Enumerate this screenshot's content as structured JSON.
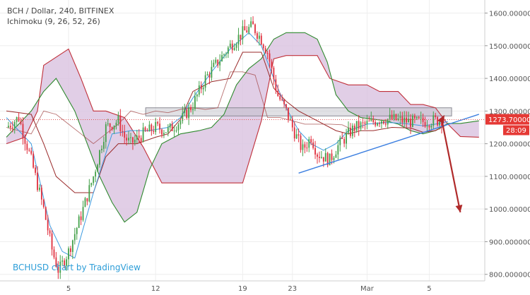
{
  "header": {
    "symbol_line": "BCH / Dollar, 240, BITFINEX",
    "indicator_line": "Ichimoku (9, 26, 52, 26)"
  },
  "watermark": "BCHUSD chart by TradingView",
  "price_label": "1273.70000",
  "countdown_label": "28:09",
  "colors": {
    "up": "#44a04a",
    "down": "#e0303e",
    "cloud": "#d9c2e0",
    "span_a": "#2f8a2f",
    "span_b": "#c0303a",
    "tenkan": "#3c9be0",
    "kijun": "#9a2a2a",
    "trend": "#3c7fe0",
    "arrow": "#b02a2a"
  },
  "chart_data": {
    "type": "candlestick",
    "title": "BCH / Dollar, 240, BITFINEX",
    "ylim": [
      780,
      1640
    ],
    "y_ticks": [
      "800.000000",
      "900.000000",
      "1000.000000",
      "1100.000000",
      "1200.000000",
      "1300.000000",
      "1400.000000",
      "1500.000000",
      "1600.000000"
    ],
    "x_labels": [
      {
        "label": "5",
        "day": 5
      },
      {
        "label": "12",
        "day": 12
      },
      {
        "label": "19",
        "day": 19
      },
      {
        "label": "23",
        "day": 23
      },
      {
        "label": "Mar",
        "day": 29
      },
      {
        "label": "5",
        "day": 34
      }
    ],
    "last_price": 1273.7,
    "close_path": [
      [
        0,
        1250
      ],
      [
        1,
        1280
      ],
      [
        2,
        1150
      ],
      [
        3,
        1000
      ],
      [
        3.7,
        870
      ],
      [
        4.2,
        810
      ],
      [
        5,
        870
      ],
      [
        6,
        980
      ],
      [
        7,
        1100
      ],
      [
        8,
        1250
      ],
      [
        9,
        1270
      ],
      [
        9.5,
        1220
      ],
      [
        10,
        1200
      ],
      [
        11,
        1230
      ],
      [
        12,
        1250
      ],
      [
        13,
        1240
      ],
      [
        14,
        1270
      ],
      [
        15,
        1320
      ],
      [
        16,
        1400
      ],
      [
        17,
        1450
      ],
      [
        18,
        1500
      ],
      [
        19,
        1540
      ],
      [
        19.8,
        1560
      ],
      [
        20.5,
        1520
      ],
      [
        21,
        1480
      ],
      [
        21.8,
        1350
      ],
      [
        22.5,
        1300
      ],
      [
        23,
        1250
      ],
      [
        23.8,
        1180
      ],
      [
        24.5,
        1220
      ],
      [
        25,
        1170
      ],
      [
        26,
        1150
      ],
      [
        26.6,
        1190
      ],
      [
        27.5,
        1230
      ],
      [
        28,
        1250
      ],
      [
        29,
        1260
      ],
      [
        30,
        1275
      ],
      [
        31,
        1275
      ],
      [
        32,
        1270
      ],
      [
        33,
        1265
      ],
      [
        34,
        1270
      ],
      [
        35,
        1272
      ]
    ],
    "resistance_zone": {
      "low": 1285,
      "high": 1310,
      "from_day": 11.2,
      "to_day": 35.8
    },
    "trendline": {
      "from": [
        23.5,
        1110
      ],
      "to": [
        38,
        1290
      ]
    },
    "forecast_arrow": {
      "from": [
        35,
        1275
      ],
      "to": [
        36.5,
        990
      ]
    },
    "ichimoku": {
      "tenkan": [
        [
          0,
          1280
        ],
        [
          2,
          1200
        ],
        [
          3.5,
          950
        ],
        [
          4.5,
          870
        ],
        [
          5.5,
          850
        ],
        [
          7,
          1050
        ],
        [
          8.5,
          1230
        ],
        [
          10,
          1240
        ],
        [
          11.5,
          1240
        ],
        [
          13,
          1250
        ],
        [
          14,
          1280
        ],
        [
          15,
          1340
        ],
        [
          16.5,
          1420
        ],
        [
          18,
          1490
        ],
        [
          19.5,
          1540
        ],
        [
          20.5,
          1500
        ],
        [
          21.5,
          1400
        ],
        [
          22.5,
          1310
        ],
        [
          23.5,
          1240
        ],
        [
          24.5,
          1200
        ],
        [
          25.5,
          1180
        ],
        [
          26.5,
          1200
        ],
        [
          27.5,
          1240
        ],
        [
          29,
          1260
        ],
        [
          30.5,
          1265
        ],
        [
          32,
          1262
        ],
        [
          33.5,
          1255
        ],
        [
          34.5,
          1260
        ],
        [
          35.5,
          1268
        ]
      ],
      "kijun": [
        [
          0,
          1300
        ],
        [
          2,
          1290
        ],
        [
          3,
          1200
        ],
        [
          4,
          1100
        ],
        [
          5.5,
          1050
        ],
        [
          7,
          1050
        ],
        [
          8,
          1160
        ],
        [
          9,
          1200
        ],
        [
          10.5,
          1200
        ],
        [
          12,
          1220
        ],
        [
          13,
          1230
        ],
        [
          14,
          1275
        ],
        [
          15,
          1360
        ],
        [
          16.5,
          1390
        ],
        [
          18,
          1400
        ],
        [
          19,
          1480
        ],
        [
          20.5,
          1480
        ],
        [
          21.5,
          1370
        ],
        [
          22.5,
          1330
        ],
        [
          23.5,
          1300
        ],
        [
          25,
          1270
        ],
        [
          26.5,
          1240
        ],
        [
          27.5,
          1230
        ],
        [
          28.5,
          1240
        ],
        [
          29.5,
          1240
        ],
        [
          31,
          1250
        ],
        [
          32.5,
          1248
        ],
        [
          33.5,
          1235
        ],
        [
          34.5,
          1240
        ],
        [
          35.5,
          1260
        ]
      ],
      "span_a": [
        [
          0,
          1220
        ],
        [
          2,
          1300
        ],
        [
          3,
          1360
        ],
        [
          4,
          1400
        ],
        [
          5.5,
          1300
        ],
        [
          6.5,
          1200
        ],
        [
          7.5,
          1100
        ],
        [
          8.5,
          1020
        ],
        [
          9.5,
          960
        ],
        [
          10.5,
          990
        ],
        [
          11.5,
          1120
        ],
        [
          12.5,
          1200
        ],
        [
          14,
          1230
        ],
        [
          15.5,
          1240
        ],
        [
          16.5,
          1250
        ],
        [
          17.5,
          1290
        ],
        [
          18.5,
          1380
        ],
        [
          19.5,
          1430
        ],
        [
          20.5,
          1460
        ],
        [
          21.5,
          1520
        ],
        [
          22.5,
          1540
        ],
        [
          24,
          1540
        ],
        [
          25,
          1520
        ],
        [
          25.8,
          1450
        ],
        [
          26.5,
          1350
        ],
        [
          27.5,
          1300
        ],
        [
          28.5,
          1280
        ],
        [
          30.5,
          1270
        ],
        [
          31.5,
          1260
        ],
        [
          32.5,
          1240
        ],
        [
          33.5,
          1230
        ],
        [
          34.5,
          1240
        ],
        [
          35.5,
          1262
        ],
        [
          36.5,
          1262
        ],
        [
          38,
          1270
        ]
      ],
      "span_b": [
        [
          0,
          1200
        ],
        [
          1.5,
          1220
        ],
        [
          2.5,
          1300
        ],
        [
          3,
          1440
        ],
        [
          5,
          1490
        ],
        [
          6,
          1400
        ],
        [
          7,
          1300
        ],
        [
          8,
          1300
        ],
        [
          9.5,
          1280
        ],
        [
          11,
          1190
        ],
        [
          12.5,
          1080
        ],
        [
          14,
          1080
        ],
        [
          15.5,
          1080
        ],
        [
          17,
          1080
        ],
        [
          18,
          1080
        ],
        [
          19,
          1080
        ],
        [
          20.5,
          1270
        ],
        [
          21.5,
          1460
        ],
        [
          22.5,
          1470
        ],
        [
          25,
          1470
        ],
        [
          26,
          1400
        ],
        [
          27.5,
          1380
        ],
        [
          29,
          1380
        ],
        [
          30,
          1360
        ],
        [
          31.5,
          1360
        ],
        [
          32.5,
          1320
        ],
        [
          33.5,
          1320
        ],
        [
          34.5,
          1310
        ],
        [
          35.5,
          1260
        ],
        [
          36.5,
          1222
        ],
        [
          38,
          1220
        ]
      ],
      "chikou": [
        [
          0,
          1250
        ],
        [
          2,
          1230
        ],
        [
          3,
          1300
        ],
        [
          4,
          1290
        ],
        [
          5,
          1260
        ],
        [
          6,
          1230
        ],
        [
          7,
          1200
        ],
        [
          8,
          1230
        ],
        [
          9,
          1260
        ],
        [
          10,
          1300
        ],
        [
          11,
          1290
        ],
        [
          12,
          1300
        ],
        [
          13,
          1295
        ],
        [
          14,
          1305
        ],
        [
          15,
          1310
        ],
        [
          16,
          1305
        ],
        [
          17,
          1310
        ],
        [
          18,
          1420
        ],
        [
          19,
          1420
        ],
        [
          20,
          1410
        ],
        [
          21,
          1280
        ],
        [
          22,
          1280
        ],
        [
          23,
          1270
        ],
        [
          24,
          1260
        ],
        [
          25,
          1260
        ],
        [
          26,
          1260
        ],
        [
          27,
          1258
        ],
        [
          28,
          1240
        ]
      ]
    }
  }
}
